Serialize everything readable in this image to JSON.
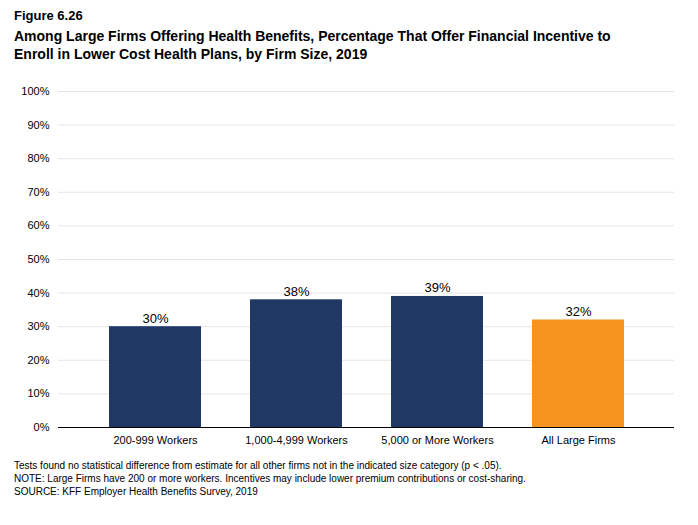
{
  "chart_data": {
    "type": "bar",
    "subtitle": "Figure 6.26",
    "title": "Among Large Firms Offering Health Benefits, Percentage That Offer Financial Incentive to\nEnroll in Lower Cost Health Plans, by Firm Size, 2019",
    "categories": [
      "200-999 Workers",
      "1,000-4,999 Workers",
      "5,000 or More Workers",
      "All Large Firms"
    ],
    "values": [
      30,
      38,
      39,
      32
    ],
    "value_labels": [
      "30%",
      "38%",
      "39%",
      "32%"
    ],
    "colors": [
      "#1f3864",
      "#1f3864",
      "#1f3864",
      "#f5941e"
    ],
    "data_labels": true,
    "ylim": [
      0,
      100
    ],
    "yticks": [
      {
        "value": 0,
        "label": "0%"
      },
      {
        "value": 10,
        "label": "10%"
      },
      {
        "value": 20,
        "label": "20%"
      },
      {
        "value": 30,
        "label": "30%"
      },
      {
        "value": 40,
        "label": "40%"
      },
      {
        "value": 50,
        "label": "50%"
      },
      {
        "value": 60,
        "label": "60%"
      },
      {
        "value": 70,
        "label": "70%"
      },
      {
        "value": 80,
        "label": "80%"
      },
      {
        "value": 90,
        "label": "90%"
      },
      {
        "value": 100,
        "label": "100%"
      }
    ],
    "grid": true,
    "annotations": [
      "Tests found no statistical difference from estimate for all other firms not in the indicated size category (p < .05).",
      "NOTE: Large Firms have 200 or more workers.  Incentives may include lower premium contributions or cost-sharing.",
      "SOURCE: KFF Employer Health Benefits Survey, 2019"
    ]
  }
}
